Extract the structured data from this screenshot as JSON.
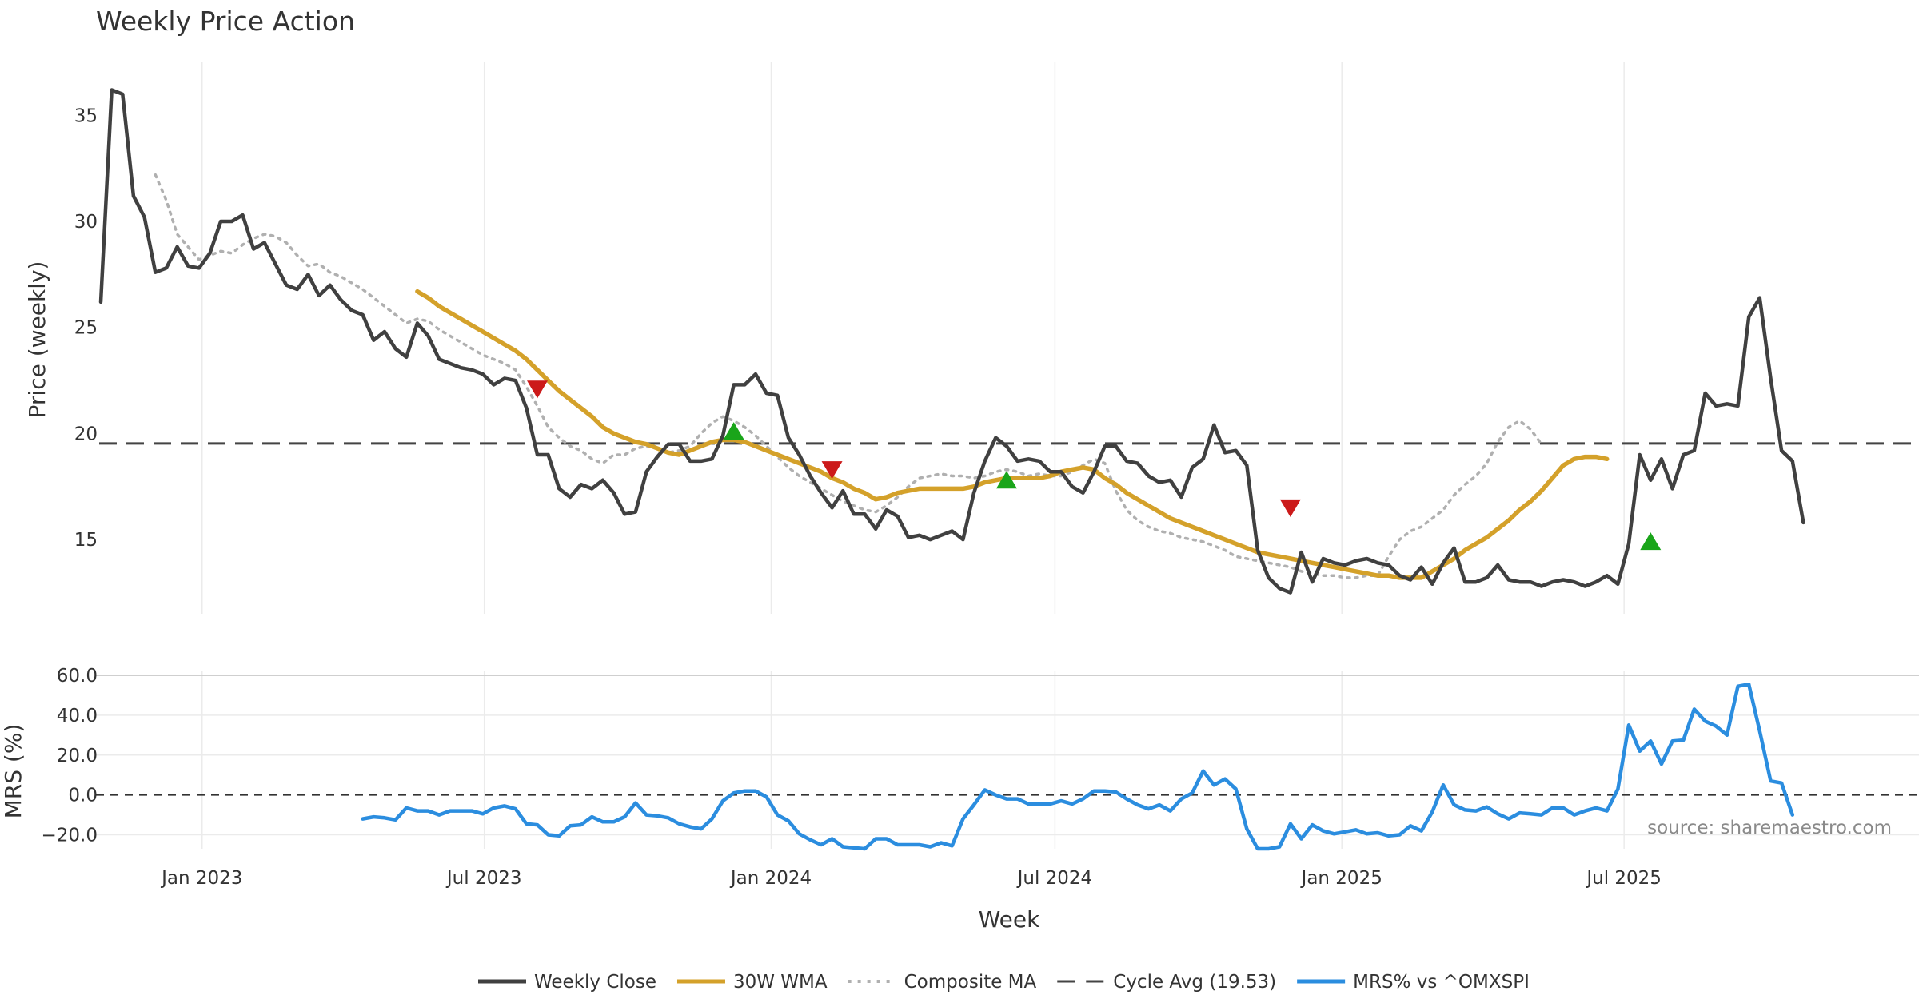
{
  "chart_data": [
    {
      "type": "line",
      "title": "Weekly Price Action",
      "ylabel": "Price (weekly)",
      "ylim": [
        11.5,
        37.5
      ],
      "yticks": [
        15,
        20,
        25,
        30,
        35
      ],
      "x_start": "2022-10-28",
      "week_step": 1,
      "series": [
        {
          "name": "Weekly Close",
          "color": "#404040",
          "style": "solid",
          "start_index": 0,
          "values": [
            26.2,
            36.2,
            36.0,
            31.2,
            30.2,
            27.6,
            27.8,
            28.8,
            27.9,
            27.8,
            28.5,
            30.0,
            30.0,
            30.3,
            28.7,
            29.0,
            28.0,
            27.0,
            26.8,
            27.5,
            26.5,
            27.0,
            26.3,
            25.8,
            25.6,
            24.4,
            24.8,
            24.0,
            23.6,
            25.2,
            24.6,
            23.5,
            23.3,
            23.1,
            23.0,
            22.8,
            22.3,
            22.6,
            22.5,
            21.2,
            19.0,
            19.0,
            17.4,
            17.0,
            17.6,
            17.4,
            17.8,
            17.2,
            16.2,
            16.3,
            18.2,
            18.9,
            19.5,
            19.5,
            18.7,
            18.7,
            18.8,
            19.9,
            22.3,
            22.3,
            22.8,
            21.9,
            21.8,
            19.8,
            19.0,
            18.0,
            17.2,
            16.5,
            17.3,
            16.2,
            16.2,
            15.5,
            16.4,
            16.1,
            15.1,
            15.2,
            15.0,
            15.2,
            15.4,
            15.0,
            17.2,
            18.7,
            19.8,
            19.4,
            18.7,
            18.8,
            18.7,
            18.2,
            18.2,
            17.5,
            17.2,
            18.2,
            19.4,
            19.4,
            18.7,
            18.6,
            18.0,
            17.7,
            17.8,
            17.0,
            18.4,
            18.8,
            20.4,
            19.1,
            19.2,
            18.5,
            14.5,
            13.2,
            12.7,
            12.5,
            14.4,
            13.0,
            14.1,
            13.9,
            13.8,
            14.0,
            14.1,
            13.9,
            13.8,
            13.3,
            13.1,
            13.7,
            12.9,
            13.9,
            14.6,
            13.0,
            13.0,
            13.2,
            13.8,
            13.1,
            13.0,
            13.0,
            12.8,
            13.0,
            13.1,
            13.0,
            12.8,
            13.0,
            13.3,
            12.9,
            14.8,
            19.0,
            17.8,
            18.8,
            17.4,
            19.0,
            19.2,
            21.9,
            21.3,
            21.4,
            21.3,
            25.5,
            26.4,
            22.6,
            19.2,
            18.7,
            15.8
          ]
        },
        {
          "name": "30W WMA",
          "color": "#d4a12a",
          "style": "solid",
          "start_index": 29,
          "values": [
            26.7,
            26.4,
            26.0,
            25.7,
            25.4,
            25.1,
            24.8,
            24.5,
            24.2,
            23.9,
            23.5,
            23.0,
            22.5,
            22.0,
            21.6,
            21.2,
            20.8,
            20.3,
            20.0,
            19.8,
            19.6,
            19.5,
            19.3,
            19.1,
            19.0,
            19.2,
            19.4,
            19.6,
            19.7,
            19.7,
            19.6,
            19.4,
            19.2,
            19.0,
            18.8,
            18.6,
            18.4,
            18.2,
            17.9,
            17.7,
            17.4,
            17.2,
            16.9,
            17.0,
            17.2,
            17.3,
            17.4,
            17.4,
            17.4,
            17.4,
            17.4,
            17.5,
            17.7,
            17.8,
            17.9,
            17.9,
            17.9,
            17.9,
            18.0,
            18.2,
            18.3,
            18.4,
            18.3,
            17.9,
            17.6,
            17.2,
            16.9,
            16.6,
            16.3,
            16.0,
            15.8,
            15.6,
            15.4,
            15.2,
            15.0,
            14.8,
            14.6,
            14.4,
            14.3,
            14.2,
            14.1,
            14.0,
            13.9,
            13.8,
            13.7,
            13.6,
            13.5,
            13.4,
            13.3,
            13.3,
            13.2,
            13.2,
            13.2,
            13.5,
            13.8,
            14.1,
            14.5,
            14.8,
            15.1,
            15.5,
            15.9,
            16.4,
            16.8,
            17.3,
            17.9,
            18.5,
            18.8,
            18.9,
            18.9,
            18.8
          ]
        },
        {
          "name": "Composite MA",
          "color": "#b0b0b0",
          "style": "dotted",
          "start_index": 5,
          "values": [
            32.2,
            31.0,
            29.4,
            28.8,
            28.2,
            28.4,
            28.6,
            28.5,
            28.9,
            29.2,
            29.4,
            29.3,
            29.0,
            28.4,
            27.9,
            28.0,
            27.6,
            27.4,
            27.1,
            26.8,
            26.4,
            26.0,
            25.6,
            25.2,
            25.4,
            25.3,
            24.9,
            24.6,
            24.3,
            24.0,
            23.7,
            23.5,
            23.3,
            23.0,
            22.2,
            21.3,
            20.3,
            19.8,
            19.4,
            19.2,
            18.8,
            18.6,
            19.0,
            19.0,
            19.3,
            19.4,
            19.3,
            19.1,
            19.2,
            19.4,
            20.0,
            20.5,
            20.8,
            20.6,
            20.3,
            19.9,
            19.4,
            18.9,
            18.4,
            18.0,
            17.7,
            17.4,
            17.1,
            16.8,
            16.6,
            16.4,
            16.3,
            16.6,
            17.0,
            17.5,
            17.9,
            18.0,
            18.1,
            18.0,
            18.0,
            17.9,
            18.0,
            18.2,
            18.3,
            18.2,
            18.0,
            18.1,
            18.0,
            18.0,
            18.2,
            18.5,
            18.8,
            18.6,
            17.3,
            16.4,
            15.9,
            15.6,
            15.4,
            15.3,
            15.1,
            15.0,
            14.9,
            14.7,
            14.5,
            14.2,
            14.1,
            14.0,
            13.9,
            13.8,
            13.7,
            13.5,
            13.4,
            13.3,
            13.3,
            13.2,
            13.2,
            13.3,
            13.3,
            14.2,
            15.0,
            15.4,
            15.6,
            16.0,
            16.4,
            17.1,
            17.6,
            18.0,
            18.6,
            19.6,
            20.3,
            20.6,
            20.2,
            19.5
          ]
        }
      ],
      "cycle_avg": {
        "name": "Cycle Avg (19.53)",
        "value": 19.53,
        "color": "#444444"
      },
      "markers": [
        {
          "type": "sell",
          "index": 40,
          "value": 22.1,
          "color": "#cc1a1a"
        },
        {
          "type": "buy",
          "index": 58,
          "value": 20.1,
          "color": "#1aa51a"
        },
        {
          "type": "sell",
          "index": 67,
          "value": 18.3,
          "color": "#cc1a1a"
        },
        {
          "type": "buy",
          "index": 83,
          "value": 17.8,
          "color": "#1aa51a"
        },
        {
          "type": "sell",
          "index": 109,
          "value": 16.5,
          "color": "#cc1a1a"
        },
        {
          "type": "buy",
          "index": 142,
          "value": 14.9,
          "color": "#1aa51a"
        }
      ]
    },
    {
      "type": "line",
      "ylabel": "MRS (%)",
      "xlabel": "Week",
      "ylim": [
        -27,
        62
      ],
      "yticks": [
        -20,
        0,
        20,
        40,
        60
      ],
      "ytick_labels": [
        "−20.0",
        "0.0",
        "20.0",
        "40.0",
        "60.0"
      ],
      "zero_line": true,
      "series": [
        {
          "name": "MRS% vs ^OMXSPI",
          "color": "#2b8ddf",
          "style": "solid",
          "start_index": 24,
          "values": [
            -12,
            -11,
            -11.5,
            -12.5,
            -6.5,
            -8,
            -8,
            -10,
            -8,
            -8,
            -8,
            -9.5,
            -6.5,
            -5.5,
            -7,
            -14.5,
            -15,
            -20,
            -20.5,
            -15.5,
            -15,
            -11,
            -13.5,
            -13.5,
            -11,
            -4,
            -10,
            -10.5,
            -11.5,
            -14.5,
            -16,
            -17,
            -12,
            -3,
            1,
            2,
            2,
            -1,
            -10,
            -13,
            -19.5,
            -22.5,
            -25,
            -22,
            -26,
            -26.5,
            -27,
            -22,
            -22,
            -25,
            -25,
            -25,
            -26,
            -24,
            -25.5,
            -12,
            -5,
            2.5,
            0,
            -2,
            -2,
            -4.5,
            -4.5,
            -4.5,
            -3,
            -4.5,
            -2,
            2,
            2,
            1.5,
            -2,
            -5,
            -7,
            -5,
            -8,
            -2,
            1,
            12,
            5,
            8,
            3,
            -17,
            -27,
            -27,
            -26,
            -14.5,
            -22,
            -15,
            -18,
            -19.5,
            -18.5,
            -17.5,
            -19.5,
            -19,
            -20.5,
            -20,
            -15.5,
            -18,
            -8.5,
            5,
            -5,
            -7.5,
            -8,
            -6,
            -9.5,
            -12,
            -9,
            -9.5,
            -10,
            -6.5,
            -6.5,
            -10,
            -8,
            -6.5,
            -8,
            3,
            35,
            22,
            27,
            15.5,
            27,
            27.5,
            43,
            37,
            34.5,
            30,
            54.5,
            55.5,
            32,
            7,
            6,
            -10
          ]
        }
      ]
    }
  ],
  "x_axis": {
    "label": "Week",
    "ticks": [
      {
        "label": "Jan 2023",
        "date": "2023-01-01"
      },
      {
        "label": "Jul 2023",
        "date": "2023-07-01"
      },
      {
        "label": "Jan 2024",
        "date": "2024-01-01"
      },
      {
        "label": "Jul 2024",
        "date": "2024-07-01"
      },
      {
        "label": "Jan 2025",
        "date": "2025-01-01"
      },
      {
        "label": "Jul 2025",
        "date": "2025-07-01"
      }
    ]
  },
  "legend": [
    {
      "label": "Weekly Close",
      "color": "#404040",
      "style": "solid"
    },
    {
      "label": "30W WMA",
      "color": "#d4a12a",
      "style": "solid"
    },
    {
      "label": "Composite MA",
      "color": "#b0b0b0",
      "style": "dotted"
    },
    {
      "label": "Cycle Avg (19.53)",
      "color": "#444444",
      "style": "dashed"
    },
    {
      "label": "MRS% vs ^OMXSPI",
      "color": "#2b8ddf",
      "style": "solid"
    }
  ],
  "source": "source: sharemaestro.com"
}
